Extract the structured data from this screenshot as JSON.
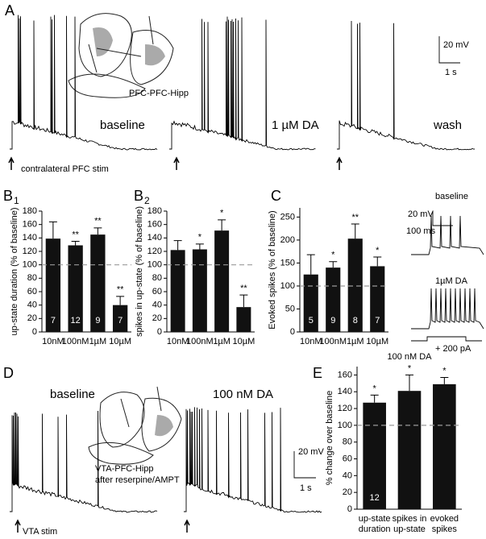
{
  "figure": {
    "labels": {
      "A": "A",
      "B1": "B",
      "B1sub": "1",
      "B2": "B",
      "B2sub": "2",
      "C": "C",
      "D": "D",
      "E": "E"
    },
    "panel_a": {
      "scale_v": "20 mV",
      "scale_t": "1 s",
      "cond1": "baseline",
      "cond2": "1 µM DA",
      "cond3": "wash",
      "stim": "contralateral PFC stim",
      "prep": "PFC-PFC-Hipp"
    },
    "panel_c_inset": {
      "cond1": "baseline",
      "scale_v": "20 mV",
      "scale_t": "100 ms",
      "cond2": "1µM DA",
      "current": "+ 200 pA"
    },
    "panel_d": {
      "cond1": "baseline",
      "cond2": "100 nM DA",
      "prep1": "VTA-PFC-Hipp",
      "prep2": "after reserpine/AMPT",
      "scale_v": "20 mV",
      "scale_t": "1 s",
      "stim": "VTA stim"
    }
  },
  "chart_data": [
    {
      "type": "bar",
      "y_label": "up-state duration (% of baseline)",
      "categories": [
        [
          "10nM"
        ],
        [
          "100nM"
        ],
        [
          "1µM"
        ],
        [
          "10µM"
        ]
      ],
      "values": [
        139,
        129,
        145,
        40
      ],
      "errors": [
        25,
        6,
        10,
        13
      ],
      "stars": [
        null,
        "**",
        "**",
        "**"
      ],
      "n": [
        7,
        12,
        9,
        7
      ],
      "ylim": [
        0,
        180
      ],
      "yticks": [
        0,
        20,
        40,
        60,
        80,
        100,
        120,
        140,
        160,
        180
      ],
      "reference_line": 100,
      "color": "#111111"
    },
    {
      "type": "bar",
      "y_label": "spikes in up-state (% of baseline)",
      "categories": [
        [
          "10nM"
        ],
        [
          "100nM"
        ],
        [
          "1µM"
        ],
        [
          "10µM"
        ]
      ],
      "values": [
        122,
        123,
        151,
        37
      ],
      "errors": [
        14,
        8,
        16,
        18
      ],
      "stars": [
        null,
        "*",
        "*",
        "**"
      ],
      "ylim": [
        0,
        180
      ],
      "yticks": [
        0,
        20,
        40,
        60,
        80,
        100,
        120,
        140,
        160,
        180
      ],
      "reference_line": 100,
      "color": "#111111"
    },
    {
      "type": "bar",
      "y_label": "Evoked spikes (% of baseline)",
      "categories": [
        [
          "10nM"
        ],
        [
          "100nM"
        ],
        [
          "1µM"
        ],
        [
          "10µM"
        ]
      ],
      "values": [
        125,
        140,
        203,
        143
      ],
      "errors": [
        43,
        13,
        32,
        20
      ],
      "stars": [
        null,
        "*",
        "**",
        "*"
      ],
      "n": [
        5,
        9,
        8,
        7
      ],
      "ylim": [
        0,
        270
      ],
      "yticks": [
        0,
        50,
        100,
        150,
        200,
        250
      ],
      "reference_line": 100,
      "color": "#111111"
    },
    {
      "type": "bar",
      "title": "100 nM DA",
      "y_label": "% change over baseline",
      "categories": [
        [
          "up-state",
          "duration"
        ],
        [
          "spikes in",
          "up-state"
        ],
        [
          "evoked",
          "spikes"
        ]
      ],
      "values": [
        127,
        141,
        149
      ],
      "errors": [
        9,
        19,
        8
      ],
      "stars": [
        "*",
        "*",
        "*"
      ],
      "n": [
        12,
        null,
        null
      ],
      "ylim": [
        0,
        170
      ],
      "yticks": [
        0,
        20,
        40,
        60,
        80,
        100,
        120,
        140,
        160
      ],
      "reference_line": 100,
      "color": "#111111"
    }
  ]
}
